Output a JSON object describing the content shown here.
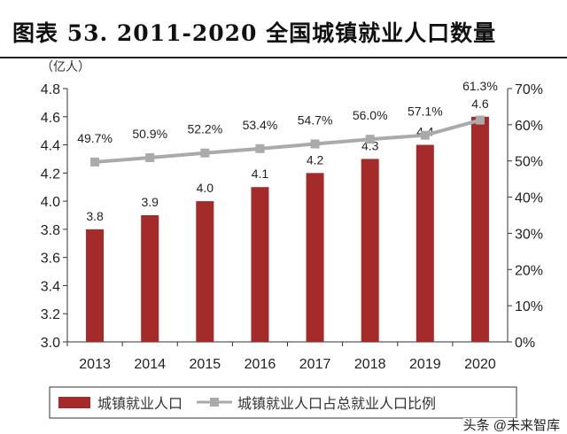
{
  "title": "图表 53. 2011-2020 全国城镇就业人口数量",
  "watermark": "头条 @未来智库",
  "chart_data": {
    "type": "bar",
    "title": "图表 53. 2011-2020 全国城镇就业人口数量",
    "categories": [
      "2013",
      "2014",
      "2015",
      "2016",
      "2017",
      "2018",
      "2019",
      "2020"
    ],
    "y_left_unit": "（亿人）",
    "ylim_left": [
      3.0,
      4.8
    ],
    "yticks_left": [
      "3.0",
      "3.2",
      "3.4",
      "3.6",
      "3.8",
      "4.0",
      "4.2",
      "4.4",
      "4.6",
      "4.8"
    ],
    "ylim_right": [
      0,
      70
    ],
    "yticks_right": [
      "0%",
      "10%",
      "20%",
      "30%",
      "40%",
      "50%",
      "60%",
      "70%"
    ],
    "series": [
      {
        "name": "城镇就业人口",
        "type": "bar",
        "axis": "left",
        "color": "#a52a2a",
        "values": [
          3.8,
          3.9,
          4.0,
          4.1,
          4.2,
          4.3,
          4.4,
          4.6
        ],
        "labels": [
          "3.8",
          "3.9",
          "4.0",
          "4.1",
          "4.2",
          "4.3",
          "4.4",
          "4.6"
        ]
      },
      {
        "name": "城镇就业人口占总就业人口比例",
        "type": "line",
        "axis": "right",
        "color": "#aaaaaa",
        "values": [
          49.7,
          50.9,
          52.2,
          53.4,
          54.7,
          56.0,
          57.1,
          61.3
        ],
        "labels": [
          "49.7%",
          "50.9%",
          "52.2%",
          "53.4%",
          "54.7%",
          "56.0%",
          "57.1%",
          "61.3%"
        ]
      }
    ],
    "legend": "bottom",
    "grid": false
  }
}
